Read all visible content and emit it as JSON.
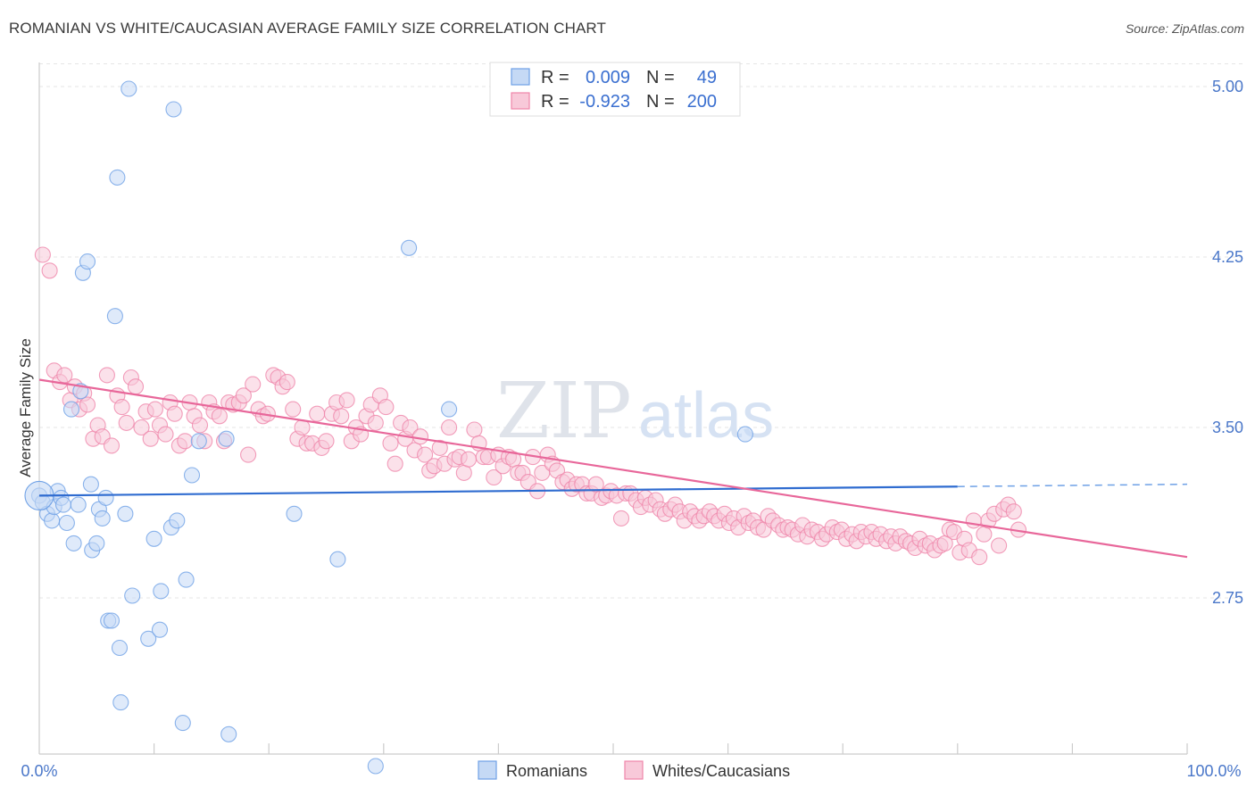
{
  "header": {
    "title": "ROMANIAN VS WHITE/CAUCASIAN AVERAGE FAMILY SIZE CORRELATION CHART",
    "source": "Source: ZipAtlas.com"
  },
  "watermark": {
    "zip": "ZIP",
    "atlas": "atlas"
  },
  "legend": {
    "r_label": "R =",
    "n_label": "N =",
    "rows": [
      {
        "r": "0.009",
        "n": "49",
        "color": "#6fa1e6"
      },
      {
        "r": "-0.923",
        "n": "200",
        "color": "#ef86aa"
      }
    ]
  },
  "bottom_legend": [
    "Romanians",
    "Whites/Caucasians"
  ],
  "chart_data": {
    "type": "scatter",
    "title": "ROMANIAN VS WHITE/CAUCASIAN AVERAGE FAMILY SIZE CORRELATION CHART",
    "xlabel": "",
    "ylabel": "Average Family Size",
    "xlim": [
      0,
      100
    ],
    "ylim": [
      2.0,
      5.1
    ],
    "x_tick_labels": [
      "0.0%",
      "100.0%"
    ],
    "y_ticks": [
      5.0,
      4.25,
      3.5,
      2.75
    ],
    "y_tick_labels": [
      "5.00",
      "4.25",
      "3.50",
      "2.75"
    ],
    "grid": true,
    "legend_position": "top-center",
    "series": [
      {
        "name": "Romanians",
        "color": "#6fa1e6",
        "fill": "#c5d9f5",
        "trend": {
          "x": [
            0,
            80
          ],
          "y": [
            3.2,
            3.24
          ],
          "dashed_extension": [
            80,
            100
          ]
        },
        "points": [
          [
            0.0,
            3.2
          ],
          [
            0.3,
            3.17
          ],
          [
            0.7,
            3.12
          ],
          [
            1.1,
            3.09
          ],
          [
            1.3,
            3.15
          ],
          [
            1.6,
            3.22
          ],
          [
            1.9,
            3.19
          ],
          [
            2.1,
            3.16
          ],
          [
            2.4,
            3.08
          ],
          [
            2.8,
            3.58
          ],
          [
            3.0,
            2.99
          ],
          [
            3.4,
            3.16
          ],
          [
            3.6,
            3.66
          ],
          [
            3.8,
            4.18
          ],
          [
            4.2,
            4.23
          ],
          [
            4.5,
            3.25
          ],
          [
            4.6,
            2.96
          ],
          [
            5.0,
            2.99
          ],
          [
            5.2,
            3.14
          ],
          [
            5.5,
            3.1
          ],
          [
            5.8,
            3.19
          ],
          [
            6.0,
            2.65
          ],
          [
            6.3,
            2.65
          ],
          [
            6.6,
            3.99
          ],
          [
            6.8,
            4.6
          ],
          [
            7.0,
            2.53
          ],
          [
            7.1,
            2.29
          ],
          [
            7.5,
            3.12
          ],
          [
            7.8,
            4.99
          ],
          [
            8.1,
            2.76
          ],
          [
            9.5,
            2.57
          ],
          [
            10.0,
            3.01
          ],
          [
            10.5,
            2.61
          ],
          [
            10.6,
            2.78
          ],
          [
            11.5,
            3.06
          ],
          [
            11.7,
            4.9
          ],
          [
            12.0,
            3.09
          ],
          [
            12.5,
            2.2
          ],
          [
            12.8,
            2.83
          ],
          [
            13.3,
            3.29
          ],
          [
            13.9,
            3.44
          ],
          [
            16.3,
            3.45
          ],
          [
            16.5,
            2.15
          ],
          [
            22.2,
            3.12
          ],
          [
            26.0,
            2.92
          ],
          [
            29.3,
            2.01
          ],
          [
            32.2,
            4.29
          ],
          [
            35.7,
            3.58
          ],
          [
            61.5,
            3.47
          ]
        ]
      },
      {
        "name": "Whites/Caucasians",
        "color": "#ef86aa",
        "fill": "#f8c9d9",
        "trend": {
          "x": [
            0,
            100
          ],
          "y": [
            3.71,
            2.93
          ]
        },
        "points": [
          [
            0.3,
            4.26
          ],
          [
            0.9,
            4.19
          ],
          [
            1.3,
            3.75
          ],
          [
            1.8,
            3.7
          ],
          [
            2.2,
            3.73
          ],
          [
            2.7,
            3.62
          ],
          [
            3.1,
            3.68
          ],
          [
            3.5,
            3.58
          ],
          [
            3.9,
            3.65
          ],
          [
            4.2,
            3.6
          ],
          [
            4.7,
            3.45
          ],
          [
            5.1,
            3.51
          ],
          [
            5.5,
            3.46
          ],
          [
            5.9,
            3.73
          ],
          [
            6.3,
            3.42
          ],
          [
            6.8,
            3.64
          ],
          [
            7.2,
            3.59
          ],
          [
            7.6,
            3.52
          ],
          [
            8.0,
            3.72
          ],
          [
            8.4,
            3.68
          ],
          [
            8.9,
            3.5
          ],
          [
            9.3,
            3.57
          ],
          [
            9.7,
            3.45
          ],
          [
            10.1,
            3.58
          ],
          [
            10.5,
            3.51
          ],
          [
            11.0,
            3.47
          ],
          [
            11.4,
            3.61
          ],
          [
            11.8,
            3.56
          ],
          [
            12.2,
            3.42
          ],
          [
            12.7,
            3.44
          ],
          [
            13.1,
            3.61
          ],
          [
            13.5,
            3.55
          ],
          [
            14.0,
            3.51
          ],
          [
            14.4,
            3.44
          ],
          [
            14.8,
            3.61
          ],
          [
            15.2,
            3.57
          ],
          [
            15.7,
            3.55
          ],
          [
            16.1,
            3.44
          ],
          [
            16.5,
            3.61
          ],
          [
            16.9,
            3.6
          ],
          [
            17.4,
            3.61
          ],
          [
            17.8,
            3.64
          ],
          [
            18.2,
            3.38
          ],
          [
            18.6,
            3.69
          ],
          [
            19.1,
            3.58
          ],
          [
            19.5,
            3.55
          ],
          [
            19.9,
            3.56
          ],
          [
            20.4,
            3.73
          ],
          [
            20.8,
            3.72
          ],
          [
            21.2,
            3.68
          ],
          [
            21.6,
            3.7
          ],
          [
            22.1,
            3.58
          ],
          [
            22.5,
            3.45
          ],
          [
            22.9,
            3.5
          ],
          [
            23.3,
            3.43
          ],
          [
            23.8,
            3.43
          ],
          [
            24.2,
            3.56
          ],
          [
            24.6,
            3.41
          ],
          [
            25.0,
            3.44
          ],
          [
            25.5,
            3.56
          ],
          [
            25.9,
            3.61
          ],
          [
            26.3,
            3.55
          ],
          [
            26.8,
            3.62
          ],
          [
            27.2,
            3.44
          ],
          [
            27.6,
            3.5
          ],
          [
            28.0,
            3.47
          ],
          [
            28.5,
            3.55
          ],
          [
            28.9,
            3.6
          ],
          [
            29.3,
            3.52
          ],
          [
            29.7,
            3.64
          ],
          [
            30.2,
            3.59
          ],
          [
            30.6,
            3.43
          ],
          [
            31.0,
            3.34
          ],
          [
            31.5,
            3.52
          ],
          [
            31.9,
            3.45
          ],
          [
            32.3,
            3.5
          ],
          [
            32.7,
            3.4
          ],
          [
            33.2,
            3.46
          ],
          [
            33.6,
            3.38
          ],
          [
            34.0,
            3.31
          ],
          [
            34.4,
            3.33
          ],
          [
            34.9,
            3.41
          ],
          [
            35.3,
            3.34
          ],
          [
            35.7,
            3.5
          ],
          [
            36.2,
            3.36
          ],
          [
            36.6,
            3.37
          ],
          [
            37.0,
            3.3
          ],
          [
            37.4,
            3.36
          ],
          [
            37.9,
            3.49
          ],
          [
            38.3,
            3.43
          ],
          [
            38.7,
            3.37
          ],
          [
            39.1,
            3.37
          ],
          [
            39.6,
            3.28
          ],
          [
            40.0,
            3.38
          ],
          [
            40.4,
            3.33
          ],
          [
            40.9,
            3.37
          ],
          [
            41.3,
            3.36
          ],
          [
            41.7,
            3.3
          ],
          [
            42.1,
            3.3
          ],
          [
            42.6,
            3.26
          ],
          [
            43.0,
            3.37
          ],
          [
            43.4,
            3.22
          ],
          [
            43.8,
            3.3
          ],
          [
            44.3,
            3.38
          ],
          [
            44.7,
            3.34
          ],
          [
            45.1,
            3.31
          ],
          [
            45.6,
            3.26
          ],
          [
            46.0,
            3.27
          ],
          [
            46.4,
            3.23
          ],
          [
            46.8,
            3.25
          ],
          [
            47.3,
            3.25
          ],
          [
            47.7,
            3.21
          ],
          [
            48.1,
            3.21
          ],
          [
            48.5,
            3.25
          ],
          [
            49.0,
            3.19
          ],
          [
            49.4,
            3.2
          ],
          [
            49.8,
            3.22
          ],
          [
            50.3,
            3.2
          ],
          [
            50.7,
            3.1
          ],
          [
            51.1,
            3.21
          ],
          [
            51.5,
            3.21
          ],
          [
            52.0,
            3.18
          ],
          [
            52.4,
            3.15
          ],
          [
            52.8,
            3.19
          ],
          [
            53.2,
            3.16
          ],
          [
            53.7,
            3.18
          ],
          [
            54.1,
            3.14
          ],
          [
            54.5,
            3.12
          ],
          [
            55.0,
            3.14
          ],
          [
            55.4,
            3.16
          ],
          [
            55.8,
            3.13
          ],
          [
            56.2,
            3.09
          ],
          [
            56.7,
            3.13
          ],
          [
            57.1,
            3.11
          ],
          [
            57.5,
            3.09
          ],
          [
            57.9,
            3.11
          ],
          [
            58.4,
            3.13
          ],
          [
            58.8,
            3.11
          ],
          [
            59.2,
            3.09
          ],
          [
            59.7,
            3.12
          ],
          [
            60.1,
            3.08
          ],
          [
            60.5,
            3.1
          ],
          [
            60.9,
            3.06
          ],
          [
            61.4,
            3.11
          ],
          [
            61.8,
            3.08
          ],
          [
            62.2,
            3.09
          ],
          [
            62.6,
            3.06
          ],
          [
            63.1,
            3.05
          ],
          [
            63.5,
            3.11
          ],
          [
            63.9,
            3.09
          ],
          [
            64.4,
            3.07
          ],
          [
            64.8,
            3.05
          ],
          [
            65.2,
            3.06
          ],
          [
            65.6,
            3.05
          ],
          [
            66.1,
            3.03
          ],
          [
            66.5,
            3.07
          ],
          [
            66.9,
            3.02
          ],
          [
            67.3,
            3.05
          ],
          [
            67.8,
            3.04
          ],
          [
            68.2,
            3.01
          ],
          [
            68.6,
            3.03
          ],
          [
            69.1,
            3.06
          ],
          [
            69.5,
            3.04
          ],
          [
            69.9,
            3.05
          ],
          [
            70.3,
            3.01
          ],
          [
            70.8,
            3.03
          ],
          [
            71.2,
            3.0
          ],
          [
            71.6,
            3.04
          ],
          [
            72.0,
            3.02
          ],
          [
            72.5,
            3.04
          ],
          [
            72.9,
            3.01
          ],
          [
            73.3,
            3.03
          ],
          [
            73.8,
            3.0
          ],
          [
            74.2,
            3.02
          ],
          [
            74.6,
            2.99
          ],
          [
            75.0,
            3.02
          ],
          [
            75.5,
            3.0
          ],
          [
            75.9,
            2.99
          ],
          [
            76.3,
            2.97
          ],
          [
            76.7,
            3.01
          ],
          [
            77.2,
            2.98
          ],
          [
            77.6,
            2.99
          ],
          [
            78.0,
            2.96
          ],
          [
            78.5,
            2.98
          ],
          [
            78.9,
            2.99
          ],
          [
            79.3,
            3.05
          ],
          [
            79.7,
            3.04
          ],
          [
            80.2,
            2.95
          ],
          [
            80.6,
            3.01
          ],
          [
            81.0,
            2.96
          ],
          [
            81.4,
            3.09
          ],
          [
            81.9,
            2.93
          ],
          [
            82.3,
            3.03
          ],
          [
            82.7,
            3.09
          ],
          [
            83.2,
            3.12
          ],
          [
            83.6,
            2.98
          ],
          [
            84.0,
            3.14
          ],
          [
            84.4,
            3.16
          ],
          [
            84.9,
            3.13
          ],
          [
            85.3,
            3.05
          ]
        ]
      }
    ]
  }
}
